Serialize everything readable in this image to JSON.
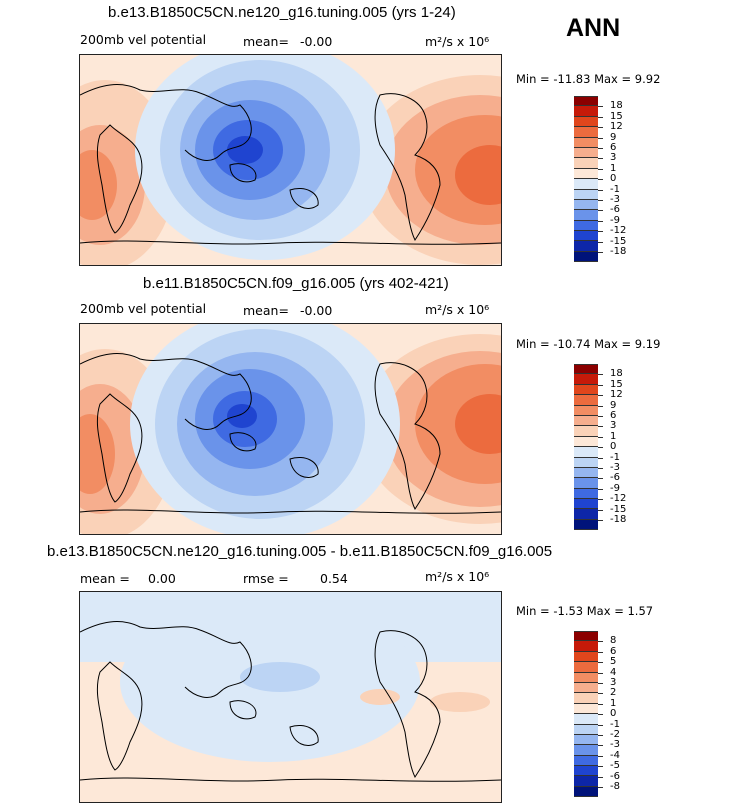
{
  "season": "ANN",
  "panels": [
    {
      "title": "b.e13.B1850C5CN.ne120_g16.tuning.005 (yrs 1-24)",
      "left_label": "200mb vel potential",
      "mean_label": "mean=",
      "mean_value": "-0.00",
      "units_label": "m²/s x 10⁶",
      "minmax": "Min = -11.83 Max =   9.92",
      "colorbar_labels": [
        "18",
        "15",
        "12",
        "9",
        "6",
        "3",
        "1",
        "0",
        "-1",
        "-3",
        "-6",
        "-9",
        "-12",
        "-15",
        "-18"
      ]
    },
    {
      "title": "b.e11.B1850C5CN.f09_g16.005 (yrs 402-421)",
      "left_label": "200mb vel potential",
      "mean_label": "mean=",
      "mean_value": "-0.00",
      "units_label": "m²/s x 10⁶",
      "minmax": "Min = -10.74 Max =   9.19",
      "colorbar_labels": [
        "18",
        "15",
        "12",
        "9",
        "6",
        "3",
        "1",
        "0",
        "-1",
        "-3",
        "-6",
        "-9",
        "-12",
        "-15",
        "-18"
      ]
    },
    {
      "title": "b.e13.B1850C5CN.ne120_g16.tuning.005 - b.e11.B1850C5CN.f09_g16.005",
      "mean_label": "mean =",
      "mean_value": "0.00",
      "rmse_label": "rmse =",
      "rmse_value": "0.54",
      "units_label": "m²/s x 10⁶",
      "minmax": "Min = -1.53 Max =   1.57",
      "colorbar_labels": [
        "8",
        "6",
        "5",
        "4",
        "3",
        "2",
        "1",
        "0",
        "-1",
        "-2",
        "-3",
        "-4",
        "-5",
        "-6",
        "-8"
      ]
    }
  ],
  "colors": {
    "ramp": [
      "#8b0000",
      "#c61a09",
      "#e0461c",
      "#ec6b3e",
      "#f28d63",
      "#f6ae8e",
      "#fad2b8",
      "#fde8d8",
      "#dbe9f8",
      "#bcd4f4",
      "#95b6f0",
      "#6a93ea",
      "#3f6ae2",
      "#1f44d0",
      "#0d26a8",
      "#00137a"
    ],
    "coast": "#000000"
  }
}
